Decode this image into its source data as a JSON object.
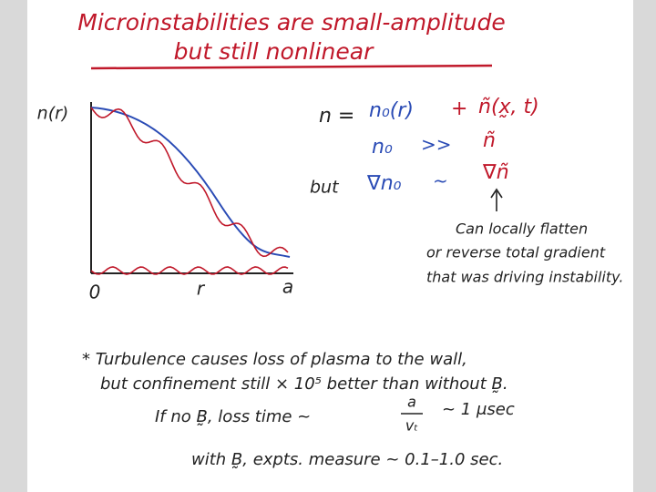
{
  "header": {
    "title": [
      "Microinstabilities are small-amplitude",
      "but still nonlinear"
    ]
  },
  "graph": {
    "y_label": "n(r)",
    "x_labels": [
      "0",
      "r",
      "a"
    ]
  },
  "equations": [
    [
      "n =",
      "n₀(r)",
      "+",
      "ñ(x̰, t)"
    ],
    [
      "n₀",
      ">>",
      "ñ"
    ],
    [
      "but",
      "∇n₀",
      "~",
      "∇ñ"
    ]
  ],
  "annotation": [
    "Can locally flatten",
    "or reverse total gradient",
    "that was driving instability."
  ],
  "notes": {
    "lines": [
      "* Turbulence causes loss of plasma to the wall,",
      "but confinement still × 10⁵ better than without B̰."
    ],
    "loss_line": {
      "before": "If no B̰, loss time ~",
      "numerator": "a",
      "denominator": "vₜ",
      "after": "~ 1 μsec"
    },
    "last": "with B̰, expts. measure ~ 0.1–1.0 sec."
  }
}
